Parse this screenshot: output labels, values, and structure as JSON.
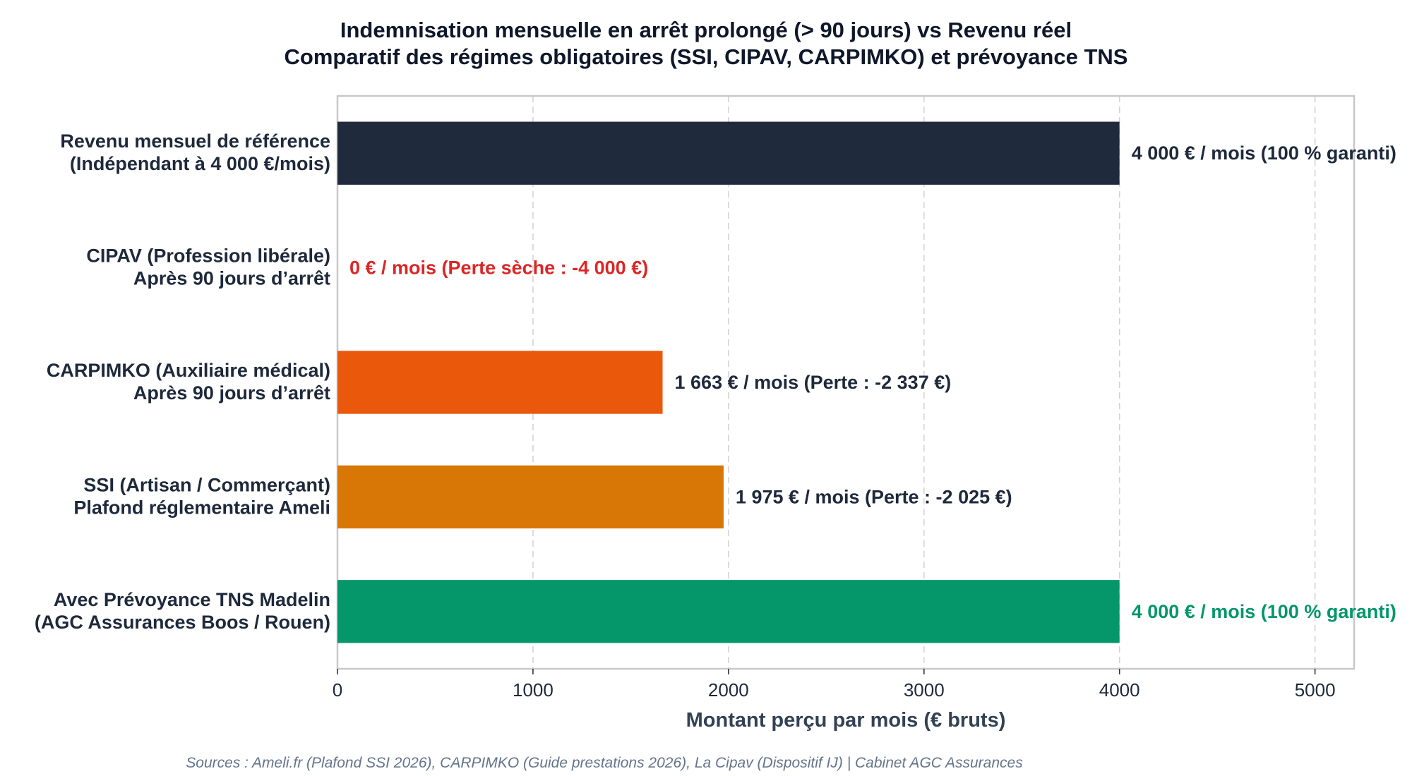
{
  "chart_data": {
    "type": "bar",
    "orientation": "horizontal",
    "title": "Indemnisation mensuelle en arrêt prolongé (> 90 jours) vs Revenu réel",
    "subtitle": "Comparatif des régimes obligatoires (SSI, CIPAV, CARPIMKO) et prévoyance TNS",
    "xlabel": "Montant perçu par mois (€ bruts)",
    "ylabel": "",
    "xlim": [
      0,
      5200
    ],
    "xticks": [
      0,
      1000,
      2000,
      3000,
      4000,
      5000
    ],
    "grid": "x-dashed",
    "categories": [
      [
        "Revenu mensuel de référence",
        "(Indépendant à 4 000 €/mois)"
      ],
      [
        "CIPAV (Profession libérale)",
        "Après 90 jours d’arrêt"
      ],
      [
        "CARPIMKO (Auxiliaire médical)",
        "Après 90 jours d’arrêt"
      ],
      [
        "SSI (Artisan / Commerçant)",
        "Plafond réglementaire Ameli"
      ],
      [
        "Avec Prévoyance TNS Madelin",
        "(AGC Assurances Boos / Rouen)"
      ]
    ],
    "values": [
      4000,
      0,
      1663,
      1975,
      4000
    ],
    "colors": [
      "#1f2a3d",
      "#dc2626",
      "#ea580c",
      "#d97706",
      "#059669"
    ],
    "data_labels": [
      "4 000 € / mois (100 % garanti)",
      "0 € / mois (Perte sèche : -4 000 €)",
      "1 663 € / mois (Perte : -2 337 €)",
      "1 975 € / mois (Perte : -2 025 €)",
      "4 000 € / mois (100 % garanti)"
    ],
    "label_colors": [
      "#1e293b",
      "#dc2626",
      "#1e293b",
      "#1e293b",
      "#059669"
    ],
    "footnote": "Sources : Ameli.fr (Plafond SSI 2026), CARPIMKO (Guide prestations 2026), La Cipav (Dispositif IJ) | Cabinet AGC Assurances"
  }
}
